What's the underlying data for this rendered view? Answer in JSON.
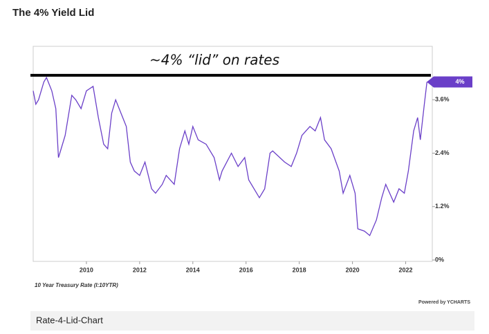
{
  "chart_data": {
    "type": "line",
    "title": "The 4% Yield Lid",
    "annotation": "~4% “lid” on rates",
    "lid_value": 4.15,
    "series_label": "10 Year Treasury Rate (I:10YTR)",
    "credit": "Powered by YCHARTS",
    "caption": "Rate-4-Lid-Chart",
    "current": {
      "value": 4,
      "label": "4%"
    },
    "color": "#6a3fc8",
    "grid": false,
    "xlim": [
      2008.0,
      2023.0
    ],
    "xticks": [
      2010,
      2012,
      2014,
      2016,
      2018,
      2020,
      2022
    ],
    "ylim": [
      0,
      4.8
    ],
    "yticks": [
      {
        "value": 0,
        "label": "0%"
      },
      {
        "value": 1.2,
        "label": "1.2%"
      },
      {
        "value": 2.4,
        "label": "2.4%"
      },
      {
        "value": 3.6,
        "label": "3.6%"
      }
    ],
    "x": [
      2008.0,
      2008.1,
      2008.2,
      2008.4,
      2008.5,
      2008.7,
      2008.85,
      2008.95,
      2009.0,
      2009.2,
      2009.45,
      2009.6,
      2009.8,
      2010.0,
      2010.25,
      2010.45,
      2010.65,
      2010.8,
      2010.95,
      2011.1,
      2011.3,
      2011.5,
      2011.65,
      2011.8,
      2012.0,
      2012.2,
      2012.45,
      2012.6,
      2012.85,
      2013.0,
      2013.3,
      2013.5,
      2013.7,
      2013.85,
      2014.0,
      2014.2,
      2014.5,
      2014.8,
      2015.0,
      2015.1,
      2015.45,
      2015.7,
      2015.95,
      2016.1,
      2016.5,
      2016.7,
      2016.9,
      2017.0,
      2017.45,
      2017.7,
      2017.9,
      2018.1,
      2018.4,
      2018.6,
      2018.8,
      2018.95,
      2019.2,
      2019.5,
      2019.65,
      2019.9,
      2020.1,
      2020.2,
      2020.45,
      2020.65,
      2020.9,
      2021.1,
      2021.25,
      2021.55,
      2021.75,
      2021.95,
      2022.1,
      2022.3,
      2022.45,
      2022.55,
      2022.7,
      2022.8
    ],
    "values": [
      3.8,
      3.5,
      3.6,
      4.0,
      4.1,
      3.8,
      3.4,
      2.3,
      2.4,
      2.8,
      3.7,
      3.6,
      3.4,
      3.8,
      3.9,
      3.2,
      2.6,
      2.5,
      3.3,
      3.6,
      3.3,
      3.0,
      2.2,
      2.0,
      1.9,
      2.2,
      1.6,
      1.5,
      1.7,
      1.9,
      1.7,
      2.5,
      2.9,
      2.6,
      3.0,
      2.7,
      2.6,
      2.3,
      1.8,
      2.0,
      2.4,
      2.1,
      2.3,
      1.8,
      1.4,
      1.6,
      2.4,
      2.45,
      2.2,
      2.1,
      2.4,
      2.8,
      3.0,
      2.9,
      3.2,
      2.7,
      2.5,
      2.0,
      1.5,
      1.9,
      1.5,
      0.7,
      0.65,
      0.55,
      0.9,
      1.4,
      1.7,
      1.3,
      1.6,
      1.5,
      2.0,
      2.9,
      3.2,
      2.7,
      3.5,
      4.0
    ]
  }
}
